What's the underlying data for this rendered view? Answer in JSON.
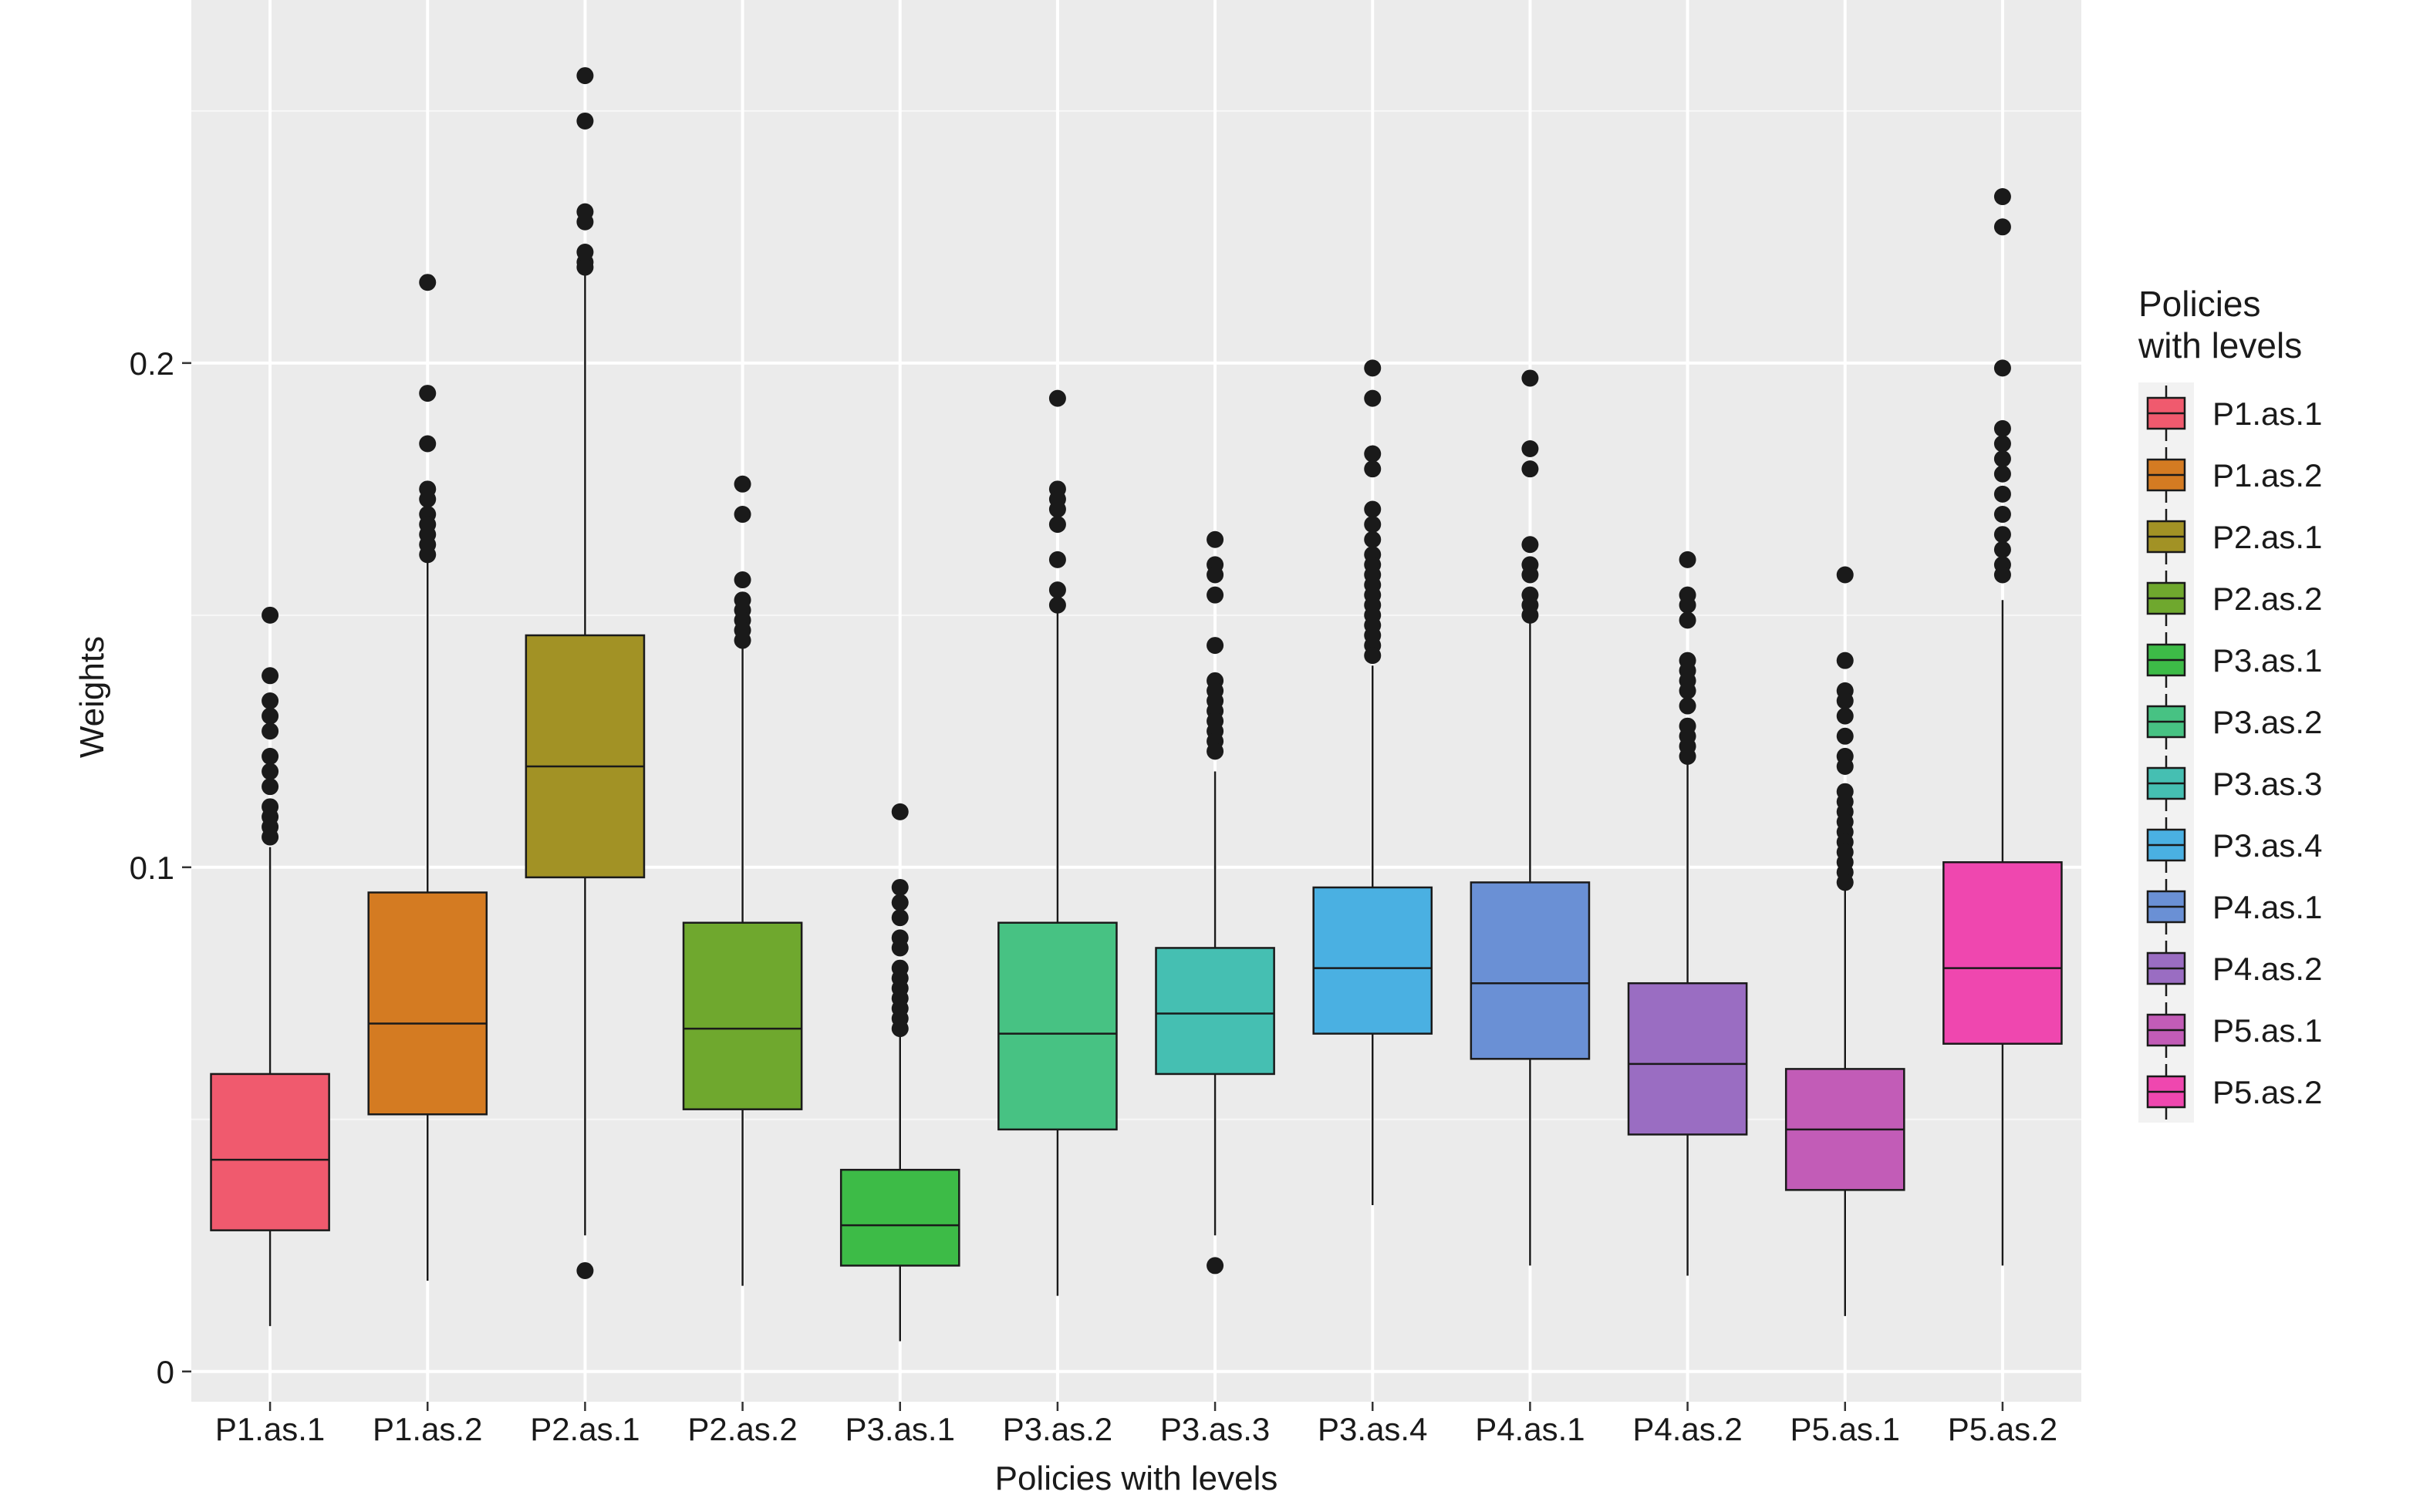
{
  "chart_data": {
    "type": "box",
    "xlabel": "Policies with levels",
    "ylabel": "Weights",
    "ylim": [
      -0.006,
      0.272
    ],
    "y_ticks": [
      0,
      0.1,
      0.2
    ],
    "y_tick_labels": [
      "0",
      "0.1",
      "0.2"
    ],
    "grid": true,
    "legend": {
      "title_lines": [
        "Policies",
        "with levels"
      ],
      "position": "right"
    },
    "categories": [
      "P1.as.1",
      "P1.as.2",
      "P2.as.1",
      "P2.as.2",
      "P3.as.1",
      "P3.as.2",
      "P3.as.3",
      "P3.as.4",
      "P4.as.1",
      "P4.as.2",
      "P5.as.1",
      "P5.as.2"
    ],
    "series": [
      {
        "name": "P1.as.1",
        "color": "#F05A6E",
        "whisker_low": 0.009,
        "q1": 0.028,
        "median": 0.042,
        "q3": 0.059,
        "whisker_high": 0.104,
        "outliers": [
          0.15,
          0.138,
          0.133,
          0.13,
          0.127,
          0.122,
          0.119,
          0.116,
          0.112,
          0.11,
          0.108,
          0.106
        ]
      },
      {
        "name": "P1.as.2",
        "color": "#D47B22",
        "whisker_low": 0.018,
        "q1": 0.051,
        "median": 0.069,
        "q3": 0.095,
        "whisker_high": 0.161,
        "outliers": [
          0.216,
          0.194,
          0.184,
          0.175,
          0.173,
          0.17,
          0.168,
          0.166,
          0.164,
          0.162
        ]
      },
      {
        "name": "P2.as.1",
        "color": "#A29225",
        "whisker_low": 0.027,
        "q1": 0.098,
        "median": 0.12,
        "q3": 0.146,
        "whisker_high": 0.218,
        "outliers": [
          0.257,
          0.248,
          0.23,
          0.228,
          0.222,
          0.22,
          0.219,
          0.02
        ]
      },
      {
        "name": "P2.as.2",
        "color": "#6FA82E",
        "whisker_low": 0.017,
        "q1": 0.052,
        "median": 0.068,
        "q3": 0.089,
        "whisker_high": 0.144,
        "outliers": [
          0.176,
          0.17,
          0.157,
          0.153,
          0.151,
          0.149,
          0.147,
          0.145
        ]
      },
      {
        "name": "P3.as.1",
        "color": "#3DBB47",
        "whisker_low": 0.006,
        "q1": 0.021,
        "median": 0.029,
        "q3": 0.04,
        "whisker_high": 0.067,
        "outliers": [
          0.111,
          0.096,
          0.093,
          0.09,
          0.086,
          0.084,
          0.08,
          0.078,
          0.076,
          0.074,
          0.072,
          0.07,
          0.068
        ]
      },
      {
        "name": "P3.as.2",
        "color": "#47C283",
        "whisker_low": 0.015,
        "q1": 0.048,
        "median": 0.067,
        "q3": 0.089,
        "whisker_high": 0.151,
        "outliers": [
          0.193,
          0.175,
          0.173,
          0.171,
          0.168,
          0.161,
          0.155,
          0.152
        ]
      },
      {
        "name": "P3.as.3",
        "color": "#45BFB2",
        "whisker_low": 0.027,
        "q1": 0.059,
        "median": 0.071,
        "q3": 0.084,
        "whisker_high": 0.119,
        "outliers": [
          0.165,
          0.16,
          0.158,
          0.154,
          0.144,
          0.137,
          0.135,
          0.133,
          0.131,
          0.129,
          0.127,
          0.125,
          0.123,
          0.021
        ]
      },
      {
        "name": "P3.as.4",
        "color": "#4AB0E2",
        "whisker_low": 0.033,
        "q1": 0.067,
        "median": 0.08,
        "q3": 0.096,
        "whisker_high": 0.14,
        "outliers": [
          0.199,
          0.193,
          0.182,
          0.179,
          0.171,
          0.168,
          0.165,
          0.162,
          0.16,
          0.158,
          0.156,
          0.154,
          0.152,
          0.15,
          0.148,
          0.146,
          0.144,
          0.142
        ]
      },
      {
        "name": "P4.as.1",
        "color": "#6A90D5",
        "whisker_low": 0.021,
        "q1": 0.062,
        "median": 0.077,
        "q3": 0.097,
        "whisker_high": 0.15,
        "outliers": [
          0.197,
          0.183,
          0.179,
          0.164,
          0.16,
          0.158,
          0.154,
          0.152,
          0.15
        ]
      },
      {
        "name": "P4.as.2",
        "color": "#9A6DC2",
        "whisker_low": 0.019,
        "q1": 0.047,
        "median": 0.061,
        "q3": 0.077,
        "whisker_high": 0.122,
        "outliers": [
          0.161,
          0.154,
          0.152,
          0.149,
          0.141,
          0.139,
          0.137,
          0.135,
          0.132,
          0.128,
          0.126,
          0.124,
          0.122
        ]
      },
      {
        "name": "P5.as.1",
        "color": "#C25CB7",
        "whisker_low": 0.011,
        "q1": 0.036,
        "median": 0.048,
        "q3": 0.06,
        "whisker_high": 0.097,
        "outliers": [
          0.158,
          0.141,
          0.135,
          0.133,
          0.13,
          0.126,
          0.122,
          0.12,
          0.115,
          0.113,
          0.111,
          0.109,
          0.107,
          0.105,
          0.103,
          0.101,
          0.099,
          0.097
        ]
      },
      {
        "name": "P5.as.2",
        "color": "#EF47AF",
        "whisker_low": 0.021,
        "q1": 0.065,
        "median": 0.08,
        "q3": 0.101,
        "whisker_high": 0.153,
        "outliers": [
          0.233,
          0.227,
          0.199,
          0.187,
          0.184,
          0.181,
          0.178,
          0.174,
          0.17,
          0.166,
          0.163,
          0.16,
          0.158
        ]
      }
    ]
  }
}
